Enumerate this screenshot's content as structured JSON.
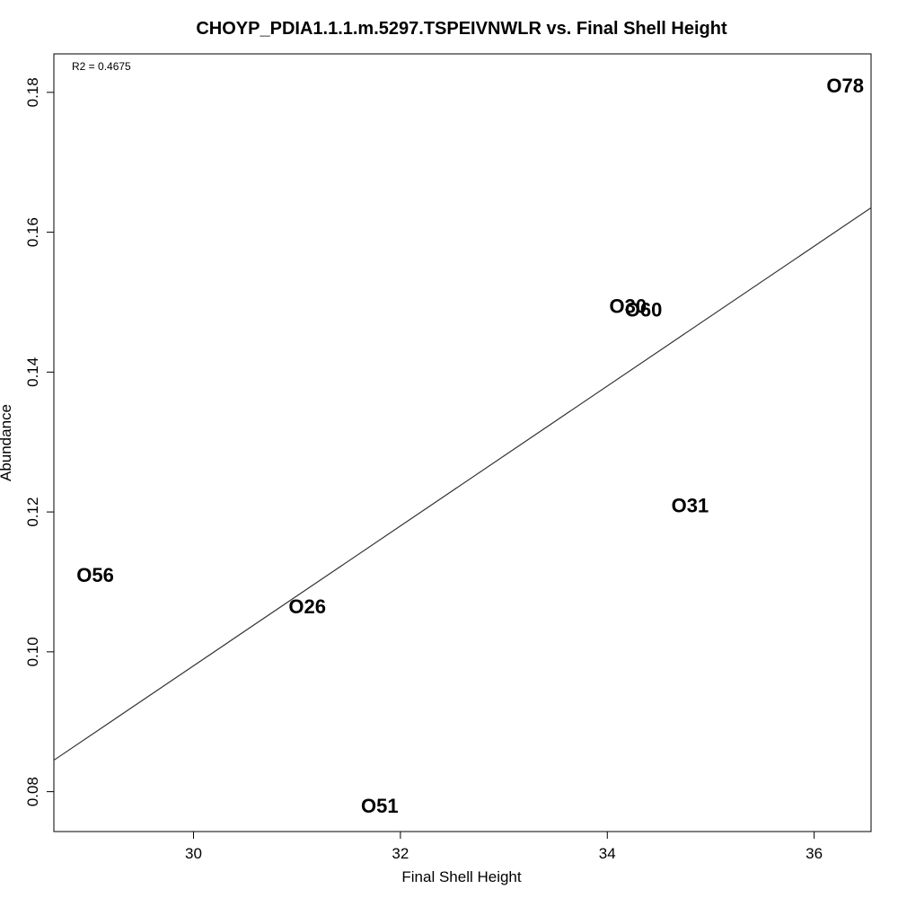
{
  "chart_data": {
    "type": "scatter",
    "title": "CHOYP_PDIA1.1.1.m.5297.TSPEIVNWLR vs. Final Shell Height",
    "xlabel": "Final Shell Height",
    "ylabel": "Abundance",
    "xlim": [
      28.65,
      36.55
    ],
    "ylim": [
      0.0743,
      0.1855
    ],
    "xticks": [
      30,
      32,
      34,
      36
    ],
    "yticks": [
      0.08,
      0.1,
      0.12,
      0.14,
      0.16,
      0.18
    ],
    "xtick_labels": [
      "30",
      "32",
      "34",
      "36"
    ],
    "ytick_labels": [
      "0.08",
      "0.10",
      "0.12",
      "0.14",
      "0.16",
      "0.18"
    ],
    "annotation": "R2 = 0.4675",
    "points": [
      {
        "label": "O56",
        "x": 29.05,
        "y": 0.111
      },
      {
        "label": "O26",
        "x": 31.1,
        "y": 0.1065
      },
      {
        "label": "O51",
        "x": 31.8,
        "y": 0.078
      },
      {
        "label": "O30",
        "x": 34.2,
        "y": 0.1495
      },
      {
        "label": "O60",
        "x": 34.35,
        "y": 0.149
      },
      {
        "label": "O31",
        "x": 34.8,
        "y": 0.121
      },
      {
        "label": "O78",
        "x": 36.3,
        "y": 0.181
      }
    ],
    "fit_line": {
      "x": [
        28.65,
        36.55
      ],
      "y": [
        0.0845,
        0.1635
      ]
    },
    "grid": false,
    "legend": "none"
  }
}
